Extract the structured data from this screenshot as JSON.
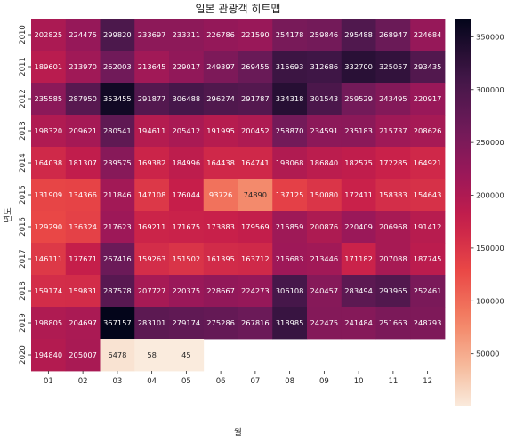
{
  "chart_data": {
    "type": "heatmap",
    "title": "일본 관광객 히트맵",
    "xlabel": "월",
    "ylabel": "년도",
    "columns": [
      "01",
      "02",
      "03",
      "04",
      "05",
      "06",
      "07",
      "08",
      "09",
      "10",
      "11",
      "12"
    ],
    "rows": [
      "2010",
      "2011",
      "2012",
      "2013",
      "2014",
      "2015",
      "2016",
      "2017",
      "2018",
      "2019",
      "2020"
    ],
    "values": [
      [
        202825,
        224475,
        299820,
        233697,
        233311,
        226786,
        221590,
        254178,
        259846,
        295488,
        268947,
        224684
      ],
      [
        189601,
        213970,
        262003,
        213645,
        229017,
        249397,
        269455,
        315693,
        312686,
        332700,
        325057,
        293435
      ],
      [
        235585,
        287950,
        353455,
        291877,
        306488,
        296274,
        291787,
        334318,
        301543,
        259529,
        243495,
        220917
      ],
      [
        198320,
        209621,
        280541,
        194611,
        205412,
        191995,
        200452,
        258870,
        234591,
        235183,
        215737,
        208626
      ],
      [
        164038,
        181307,
        239575,
        169382,
        184996,
        164438,
        164741,
        198068,
        186840,
        182575,
        172285,
        164921
      ],
      [
        131909,
        134366,
        211846,
        147108,
        176044,
        93726,
        74890,
        137125,
        150080,
        172411,
        158383,
        154643
      ],
      [
        129290,
        136324,
        217623,
        169211,
        171675,
        173883,
        179569,
        215859,
        200876,
        220409,
        206968,
        191412
      ],
      [
        146111,
        177671,
        267416,
        159263,
        151502,
        161395,
        163712,
        216683,
        213446,
        171182,
        207088,
        187745
      ],
      [
        159174,
        159831,
        287578,
        207727,
        220375,
        228667,
        224273,
        306108,
        240457,
        283494,
        293965,
        252461
      ],
      [
        198805,
        204697,
        367157,
        283101,
        279174,
        275286,
        267816,
        318985,
        242475,
        241484,
        251663,
        248793
      ],
      [
        194840,
        205007,
        6478,
        58,
        45,
        null,
        null,
        null,
        null,
        null,
        null,
        null
      ]
    ],
    "value_range": [
      45,
      367157
    ],
    "colormap": "rocket_r",
    "colorbar_ticks": [
      50000,
      100000,
      150000,
      200000,
      250000,
      300000,
      350000
    ]
  }
}
